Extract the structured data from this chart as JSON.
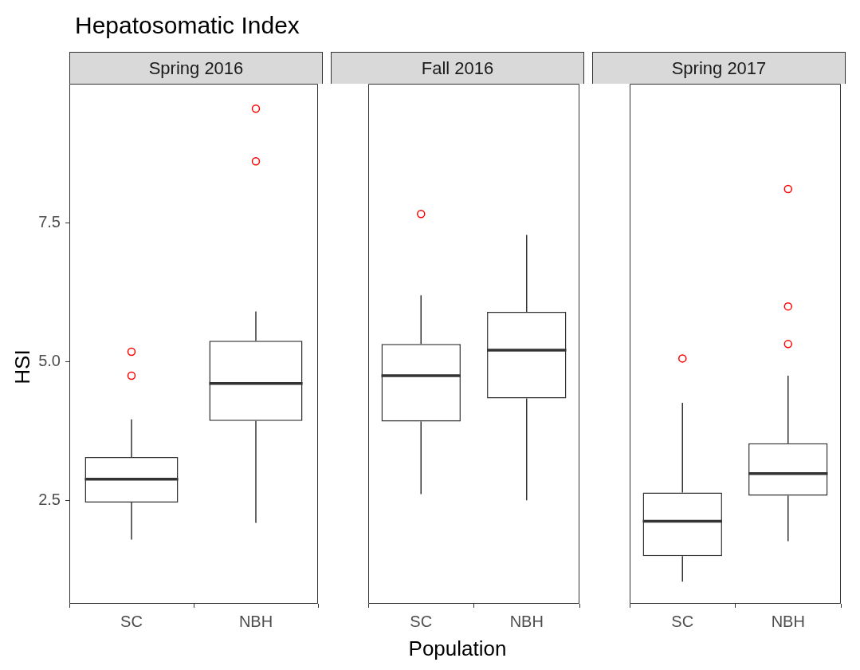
{
  "chart_data": [
    {
      "type": "box",
      "title": "Spring 2016",
      "annotations": [
        "Hepatosomatic Index"
      ],
      "ylabel": "HSI",
      "categories": [
        "SC",
        "NBH"
      ],
      "color": "#333333",
      "ylim": [
        0.63,
        10.02
      ],
      "yticks": [
        2.5,
        {
          "value": 5,
          "label": "5.0"
        },
        7.5
      ],
      "boxes": [
        {
          "low": 1.79,
          "q1": 2.46,
          "median": 2.88,
          "q3": 3.28,
          "high": 3.96,
          "outliers": [
            4.75,
            5.18
          ]
        },
        {
          "low": 2.09,
          "q1": 3.93,
          "median": 4.61,
          "q3": 5.38,
          "high": 5.91,
          "outliers": [
            8.62,
            9.57
          ]
        }
      ]
    },
    {
      "type": "box",
      "title": "Fall 2016",
      "xlabel": "Population",
      "categories": [
        "SC",
        "NBH"
      ],
      "color": "#333333",
      "ylim": [
        0.63,
        10.02
      ],
      "tick_labels": "x",
      "boxes": [
        {
          "low": 2.61,
          "q1": 3.92,
          "median": 4.75,
          "q3": 5.32,
          "high": 6.2,
          "outliers": [
            7.67
          ]
        },
        {
          "low": 2.5,
          "q1": 4.34,
          "median": 5.21,
          "q3": 5.9,
          "high": 7.29
        }
      ]
    },
    {
      "type": "box",
      "title": "Spring 2017",
      "categories": [
        "SC",
        "NBH"
      ],
      "color": "#333333",
      "ylim": [
        0.63,
        10.02
      ],
      "tick_labels": "x",
      "boxes": [
        {
          "low": 1.03,
          "q1": 1.49,
          "median": 2.12,
          "q3": 2.64,
          "high": 4.26,
          "outliers": [
            5.06
          ]
        },
        {
          "low": 1.76,
          "q1": 2.58,
          "median": 2.98,
          "q3": 3.53,
          "high": 4.75,
          "outliers": [
            5.32,
            6.0,
            8.12
          ]
        }
      ]
    }
  ]
}
